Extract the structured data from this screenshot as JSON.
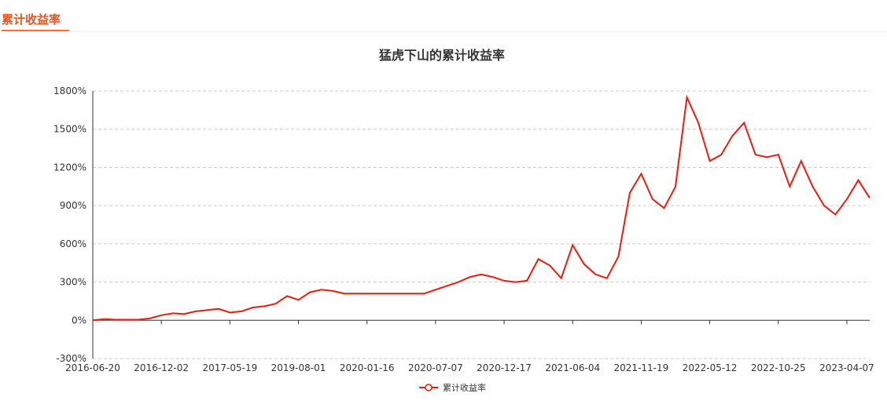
{
  "header": {
    "tab": "累计收益率"
  },
  "chart_data": {
    "type": "line",
    "title": "猛虎下山的累计收益率",
    "categories": [
      "2016-06-20",
      null,
      null,
      null,
      null,
      null,
      "2016-12-02",
      null,
      null,
      null,
      null,
      null,
      "2017-05-19",
      null,
      null,
      null,
      null,
      null,
      "2019-08-01",
      null,
      null,
      null,
      null,
      null,
      "2020-01-16",
      null,
      null,
      null,
      null,
      null,
      "2020-07-07",
      null,
      null,
      null,
      null,
      null,
      "2020-12-17",
      null,
      null,
      null,
      null,
      null,
      "2021-06-04",
      null,
      null,
      null,
      null,
      null,
      "2021-11-19",
      null,
      null,
      null,
      null,
      null,
      "2022-05-12",
      null,
      null,
      null,
      null,
      null,
      "2022-10-25",
      null,
      null,
      null,
      null,
      null,
      "2023-04-07",
      null,
      null
    ],
    "series": [
      {
        "name": "累计收益率",
        "color": "#ee1c0c",
        "values": [
          0,
          10,
          5,
          5,
          5,
          15,
          40,
          55,
          50,
          70,
          80,
          90,
          60,
          70,
          100,
          110,
          130,
          190,
          160,
          220,
          240,
          230,
          210,
          210,
          210,
          210,
          210,
          210,
          210,
          210,
          240,
          270,
          300,
          340,
          360,
          340,
          310,
          300,
          310,
          480,
          430,
          330,
          590,
          440,
          360,
          330,
          500,
          1000,
          1150,
          950,
          880,
          1050,
          1750,
          1550,
          1250,
          1300,
          1450,
          1550,
          1300,
          1280,
          1300,
          1050,
          1250,
          1050,
          900,
          830,
          950,
          1100,
          960
        ]
      }
    ],
    "ylim": [
      -300,
      1800
    ],
    "yticks": [
      {
        "value": -300,
        "label": "-300%"
      },
      {
        "value": 0,
        "label": "0%"
      },
      {
        "value": 300,
        "label": "300%"
      },
      {
        "value": 600,
        "label": "600%"
      },
      {
        "value": 900,
        "label": "900%"
      },
      {
        "value": 1200,
        "label": "1200%"
      },
      {
        "value": 1500,
        "label": "1500%"
      },
      {
        "value": 1800,
        "label": "1800%"
      }
    ],
    "grid": true
  }
}
